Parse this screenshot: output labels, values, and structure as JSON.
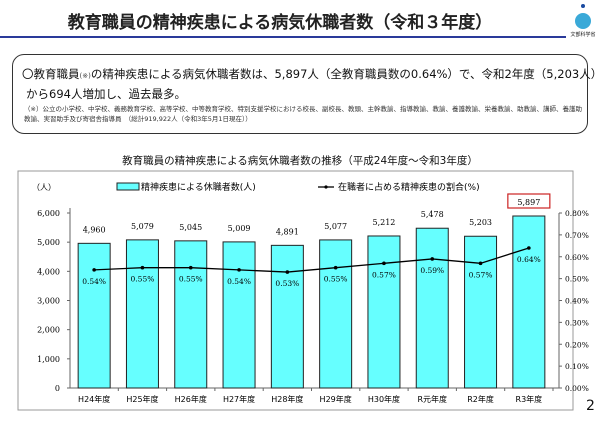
{
  "header": {
    "title": "教育職員の精神疾患による病気休職者数（令和３年度）",
    "logo_text": "文部科学省"
  },
  "summary": {
    "line1_a": "〇教育職員",
    "line1_note": "(※)",
    "line1_b": "の精神疾患による病気休職者数は、5,897人（全教育職員数の0.64%）で、令和2年度（5,203人）",
    "line2": "から694人増加し、過去最多。",
    "footnote": "（※）公立の小学校、中学校、義務教育学校、高等学校、中等教育学校、特別支援学校における校長、副校長、教頭、主幹教諭、指導教諭、教諭、養護教諭、栄養教諭、助教諭、講師、養護助教諭、実習助手及び寄宿舎指導員　（総計919,922人（令和3年5月1日現在））"
  },
  "page_number": "2",
  "chart_data": {
    "type": "bar",
    "title": "教育職員の精神疾患による病気休職者数の推移（平成24年度～令和3年度）",
    "ylabel": "（人）",
    "categories": [
      "H24年度",
      "H25年度",
      "H26年度",
      "H27年度",
      "H28年度",
      "H29年度",
      "H30年度",
      "R元年度",
      "R2年度",
      "R3年度"
    ],
    "series": [
      {
        "name": "精神疾患による休職者数(人)",
        "type": "bar",
        "axis": "left",
        "color": "#66ffff",
        "values": [
          4960,
          5079,
          5045,
          5009,
          4891,
          5077,
          5212,
          5478,
          5203,
          5897
        ],
        "labels": [
          "4,960",
          "5,079",
          "5,045",
          "5,009",
          "4,891",
          "5,077",
          "5,212",
          "5,478",
          "5,203",
          "5,897"
        ]
      },
      {
        "name": "在職者に占める精神疾患の割合(%)",
        "type": "line",
        "axis": "right",
        "color": "#000000",
        "values": [
          0.54,
          0.55,
          0.55,
          0.54,
          0.53,
          0.55,
          0.57,
          0.59,
          0.57,
          0.64
        ],
        "labels": [
          "0.54%",
          "0.55%",
          "0.55%",
          "0.54%",
          "0.53%",
          "0.55%",
          "0.57%",
          "0.59%",
          "0.57%",
          "0.64%"
        ]
      }
    ],
    "ylim": [
      0,
      6000
    ],
    "yticks": [
      "0",
      "1,000",
      "2,000",
      "3,000",
      "4,000",
      "5,000",
      "6,000"
    ],
    "y2lim": [
      0,
      0.8
    ],
    "y2ticks": [
      "0.00%",
      "0.10%",
      "0.20%",
      "0.30%",
      "0.40%",
      "0.50%",
      "0.60%",
      "0.70%",
      "0.80%"
    ],
    "highlight": {
      "category": "R3年度",
      "color": "#cc2222"
    },
    "legend": "top",
    "grid": false
  }
}
